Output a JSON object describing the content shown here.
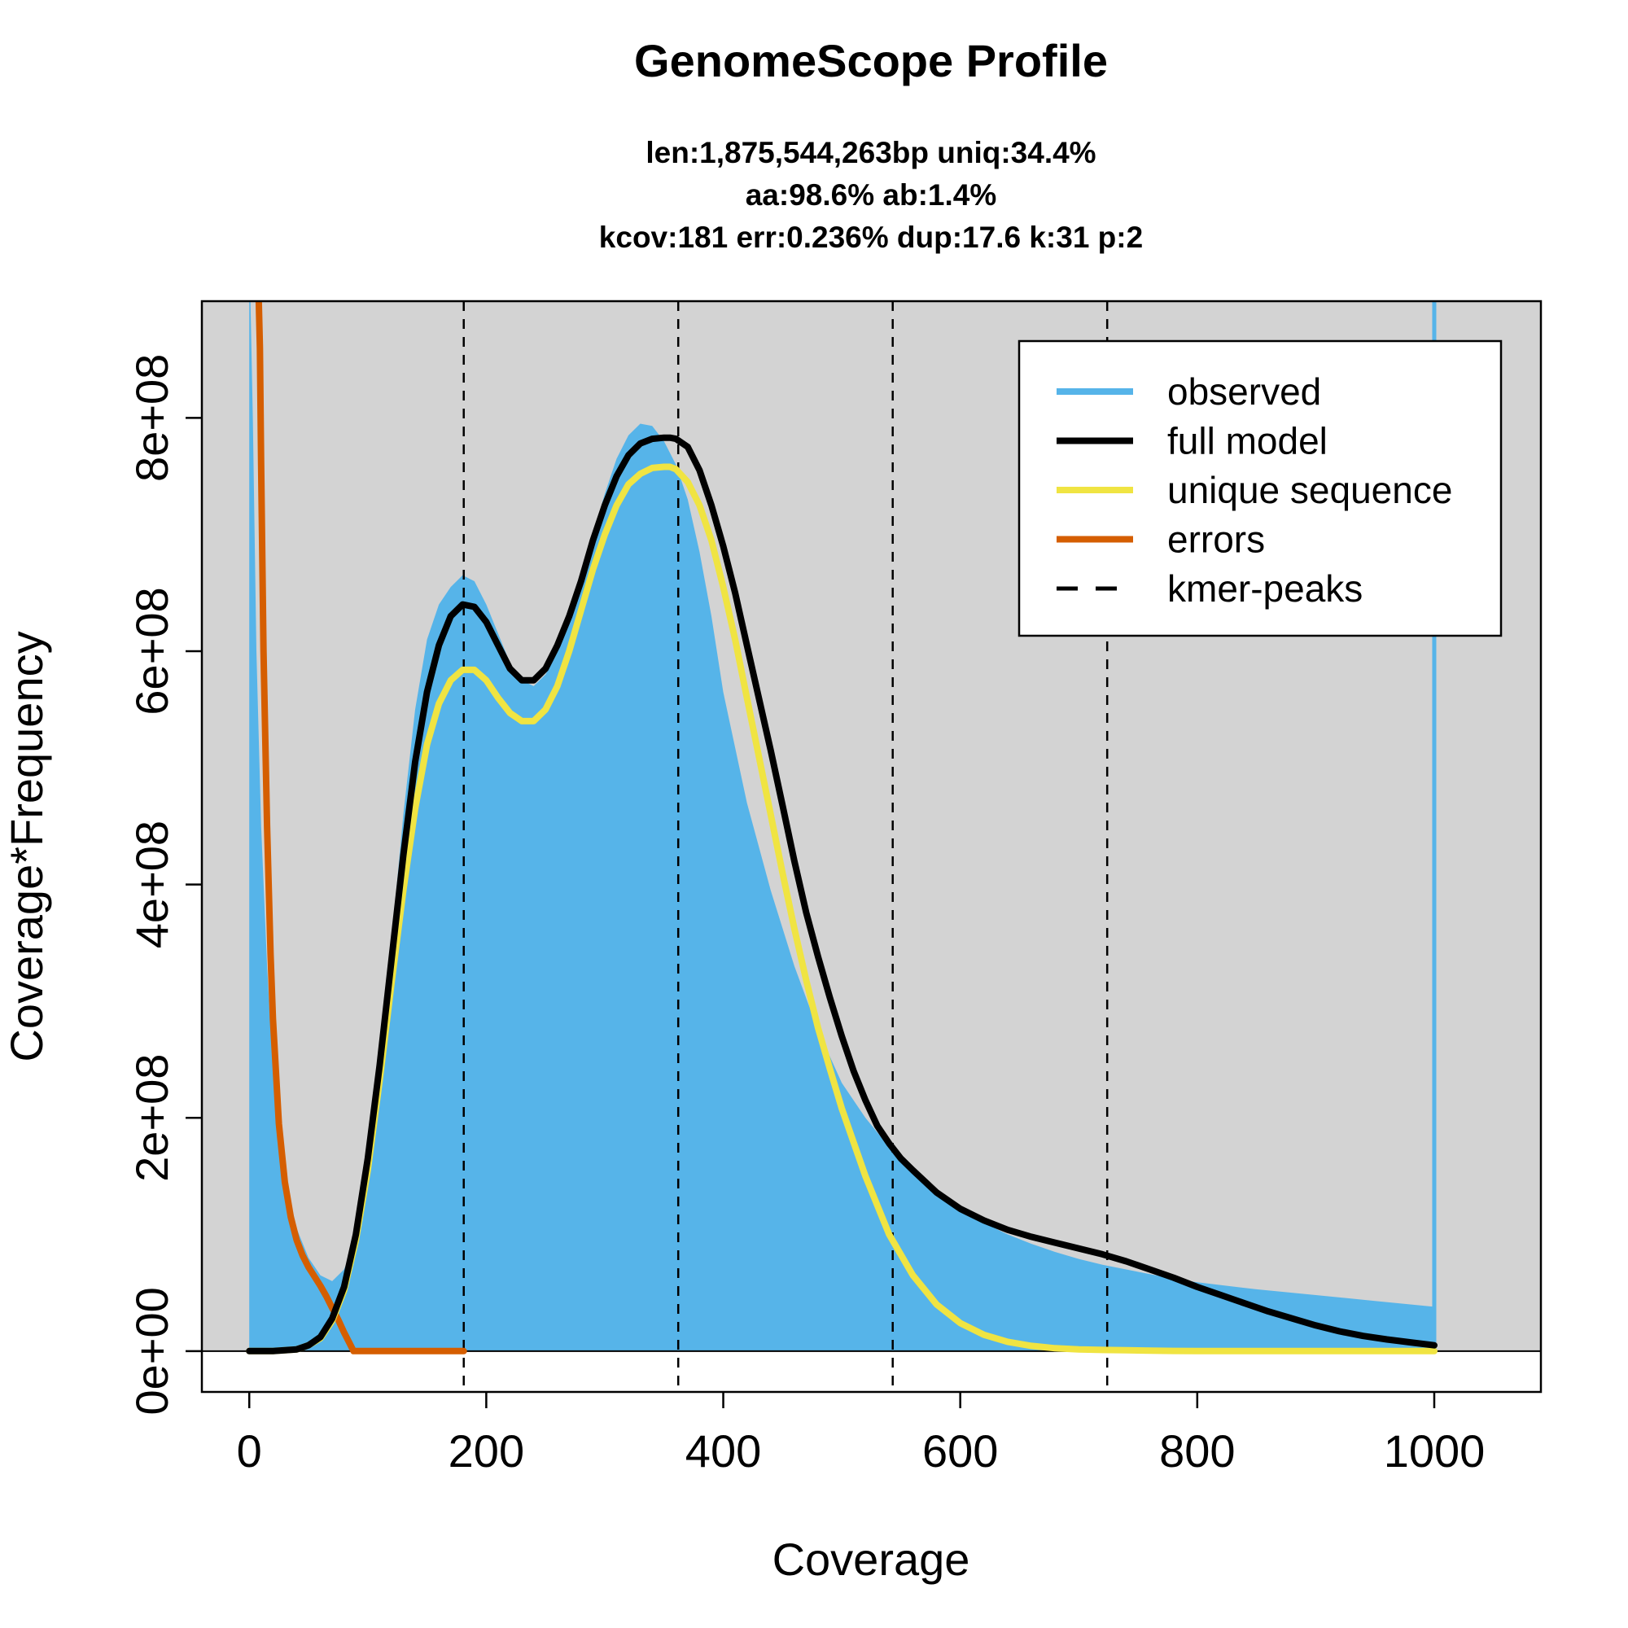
{
  "chart_data": {
    "type": "area",
    "title": "GenomeScope Profile",
    "subtitle_lines": [
      "len:1,875,544,263bp uniq:34.4%",
      "aa:98.6% ab:1.4%",
      "kcov:181 err:0.236%  dup:17.6  k:31 p:2"
    ],
    "xlabel": "Coverage",
    "ylabel": "Coverage*Frequency",
    "xlim": [
      -40,
      1090
    ],
    "ylim": [
      -35000000,
      900000000
    ],
    "x_ticks": [
      {
        "value": 0,
        "label": "0"
      },
      {
        "value": 200,
        "label": "200"
      },
      {
        "value": 400,
        "label": "400"
      },
      {
        "value": 600,
        "label": "600"
      },
      {
        "value": 800,
        "label": "800"
      },
      {
        "value": 1000,
        "label": "1000"
      }
    ],
    "y_ticks": [
      {
        "value": 0,
        "label": "0e+00"
      },
      {
        "value": 200000000,
        "label": "2e+08"
      },
      {
        "value": 400000000,
        "label": "4e+08"
      },
      {
        "value": 600000000,
        "label": "6e+08"
      },
      {
        "value": 800000000,
        "label": "8e+08"
      }
    ],
    "kmer_peaks": [
      181,
      362,
      543,
      724
    ],
    "legend": {
      "placement": "top-right",
      "entries": [
        {
          "label": "observed",
          "color": "#56B4E9",
          "style": "solid"
        },
        {
          "label": "full model",
          "color": "#000000",
          "style": "solid"
        },
        {
          "label": "unique sequence",
          "color": "#F0E442",
          "style": "solid"
        },
        {
          "label": "errors",
          "color": "#D55E00",
          "style": "solid"
        },
        {
          "label": "kmer-peaks",
          "color": "#000000",
          "style": "dashed"
        }
      ]
    },
    "series": [
      {
        "name": "observed",
        "kind": "area",
        "color": "#56B4E9",
        "x": [
          0,
          1,
          3,
          6,
          10,
          15,
          20,
          30,
          40,
          50,
          60,
          70,
          80,
          90,
          100,
          110,
          120,
          130,
          140,
          150,
          160,
          170,
          180,
          190,
          200,
          210,
          220,
          230,
          240,
          250,
          260,
          270,
          280,
          290,
          300,
          310,
          320,
          330,
          340,
          350,
          360,
          370,
          380,
          390,
          400,
          420,
          440,
          460,
          480,
          500,
          520,
          540,
          560,
          580,
          600,
          620,
          640,
          660,
          680,
          700,
          720,
          740,
          760,
          780,
          800,
          850,
          900,
          950,
          1000
        ],
        "y": [
          900000000,
          900000000,
          800000000,
          600000000,
          450000000,
          330000000,
          240000000,
          150000000,
          105000000,
          80000000,
          65000000,
          60000000,
          70000000,
          95000000,
          150000000,
          240000000,
          350000000,
          460000000,
          550000000,
          610000000,
          640000000,
          655000000,
          665000000,
          660000000,
          640000000,
          615000000,
          590000000,
          575000000,
          570000000,
          580000000,
          600000000,
          630000000,
          665000000,
          700000000,
          735000000,
          765000000,
          785000000,
          795000000,
          793000000,
          780000000,
          760000000,
          730000000,
          685000000,
          630000000,
          565000000,
          470000000,
          395000000,
          330000000,
          275000000,
          230000000,
          200000000,
          175000000,
          152000000,
          135000000,
          120000000,
          110000000,
          100000000,
          92000000,
          85000000,
          79000000,
          74000000,
          70000000,
          66000000,
          62000000,
          59000000,
          53000000,
          48000000,
          43000000,
          38000000
        ]
      },
      {
        "name": "full model",
        "kind": "line",
        "color": "#000000",
        "x": [
          0,
          20,
          40,
          50,
          60,
          70,
          80,
          90,
          100,
          110,
          120,
          130,
          140,
          150,
          160,
          170,
          180,
          190,
          200,
          210,
          220,
          230,
          240,
          250,
          260,
          270,
          280,
          290,
          300,
          310,
          320,
          330,
          340,
          350,
          355,
          360,
          370,
          380,
          390,
          400,
          410,
          420,
          430,
          440,
          450,
          460,
          470,
          480,
          490,
          500,
          510,
          520,
          530,
          540,
          550,
          560,
          580,
          600,
          620,
          640,
          660,
          680,
          700,
          720,
          740,
          760,
          780,
          800,
          820,
          840,
          860,
          880,
          900,
          920,
          940,
          960,
          980,
          1000
        ],
        "y": [
          0,
          0,
          1500000,
          5000000,
          12000000,
          28000000,
          55000000,
          100000000,
          165000000,
          245000000,
          335000000,
          425000000,
          505000000,
          565000000,
          605000000,
          630000000,
          640000000,
          638000000,
          625000000,
          605000000,
          585000000,
          575000000,
          575000000,
          585000000,
          605000000,
          630000000,
          660000000,
          695000000,
          725000000,
          750000000,
          768000000,
          778000000,
          782000000,
          783000000,
          783000000,
          782000000,
          775000000,
          755000000,
          725000000,
          690000000,
          650000000,
          605000000,
          560000000,
          515000000,
          468000000,
          420000000,
          376000000,
          338000000,
          303000000,
          270000000,
          240000000,
          215000000,
          193000000,
          178000000,
          165000000,
          155000000,
          136000000,
          122000000,
          112000000,
          104000000,
          98000000,
          93000000,
          88000000,
          83000000,
          77000000,
          70000000,
          63000000,
          55000000,
          48000000,
          41000000,
          34000000,
          28000000,
          22000000,
          17000000,
          13000000,
          10000000,
          7500000,
          5000000
        ]
      },
      {
        "name": "unique sequence",
        "kind": "line",
        "color": "#F0E442",
        "x": [
          0,
          20,
          40,
          50,
          60,
          70,
          80,
          90,
          100,
          110,
          120,
          130,
          140,
          150,
          160,
          170,
          180,
          190,
          200,
          210,
          220,
          230,
          240,
          250,
          260,
          270,
          280,
          290,
          300,
          310,
          320,
          330,
          340,
          350,
          355,
          360,
          370,
          380,
          390,
          400,
          410,
          420,
          430,
          440,
          450,
          460,
          470,
          480,
          490,
          500,
          520,
          540,
          560,
          580,
          600,
          620,
          640,
          660,
          680,
          700,
          720,
          740,
          760,
          780,
          800,
          850,
          900,
          950,
          1000
        ],
        "y": [
          0,
          0,
          1500000,
          5000000,
          11000000,
          26000000,
          52000000,
          95000000,
          155000000,
          232000000,
          315000000,
          395000000,
          465000000,
          520000000,
          555000000,
          575000000,
          584000000,
          584000000,
          575000000,
          560000000,
          547000000,
          540000000,
          540000000,
          550000000,
          570000000,
          600000000,
          635000000,
          670000000,
          700000000,
          725000000,
          743000000,
          752000000,
          757000000,
          758000000,
          758000000,
          756000000,
          745000000,
          725000000,
          695000000,
          655000000,
          610000000,
          560000000,
          510000000,
          460000000,
          410000000,
          362000000,
          318000000,
          277000000,
          242000000,
          208000000,
          150000000,
          100000000,
          65000000,
          40000000,
          24000000,
          14000000,
          8000000,
          4500000,
          2500000,
          1500000,
          1000000,
          700000,
          400000,
          200000,
          100000,
          0,
          0,
          0,
          0
        ]
      },
      {
        "name": "errors",
        "kind": "line",
        "color": "#D55E00",
        "x": [
          8,
          9,
          10,
          12,
          15,
          18,
          20,
          25,
          30,
          35,
          40,
          45,
          50,
          55,
          60,
          65,
          70,
          75,
          80,
          85,
          88,
          100,
          120,
          140,
          160,
          181
        ],
        "y": [
          900000000,
          860000000,
          760000000,
          600000000,
          450000000,
          340000000,
          285000000,
          195000000,
          145000000,
          115000000,
          95000000,
          82000000,
          72000000,
          64000000,
          56000000,
          47000000,
          37000000,
          27000000,
          16000000,
          6000000,
          0,
          0,
          0,
          0,
          0,
          0
        ]
      }
    ],
    "observed_tail_x": 1000
  }
}
